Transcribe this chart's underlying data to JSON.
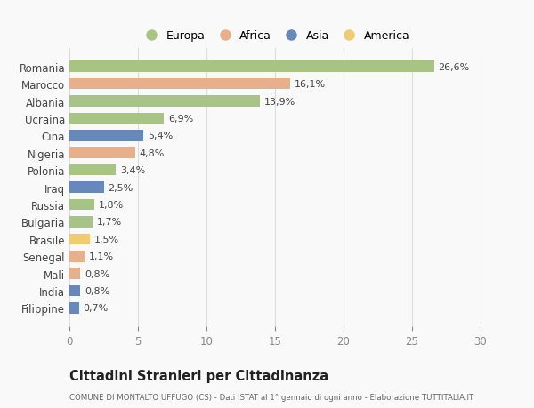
{
  "countries": [
    "Romania",
    "Marocco",
    "Albania",
    "Ucraina",
    "Cina",
    "Nigeria",
    "Polonia",
    "Iraq",
    "Russia",
    "Bulgaria",
    "Brasile",
    "Senegal",
    "Mali",
    "India",
    "Filippine"
  ],
  "values": [
    26.6,
    16.1,
    13.9,
    6.9,
    5.4,
    4.8,
    3.4,
    2.5,
    1.8,
    1.7,
    1.5,
    1.1,
    0.8,
    0.8,
    0.7
  ],
  "labels": [
    "26,6%",
    "16,1%",
    "13,9%",
    "6,9%",
    "5,4%",
    "4,8%",
    "3,4%",
    "2,5%",
    "1,8%",
    "1,7%",
    "1,5%",
    "1,1%",
    "0,8%",
    "0,8%",
    "0,7%"
  ],
  "colors": [
    "#a8c484",
    "#e8b08a",
    "#a8c484",
    "#a8c484",
    "#6688bb",
    "#e8b08a",
    "#a8c484",
    "#6688bb",
    "#a8c484",
    "#a8c484",
    "#f0cc70",
    "#e8b08a",
    "#e8b08a",
    "#6688bb",
    "#6688bb"
  ],
  "continent_colors": {
    "Europa": "#a8c484",
    "Africa": "#e8b08a",
    "Asia": "#6688bb",
    "America": "#f0cc70"
  },
  "title": "Cittadini Stranieri per Cittadinanza",
  "subtitle": "COMUNE DI MONTALTO UFFUGO (CS) - Dati ISTAT al 1° gennaio di ogni anno - Elaborazione TUTTITALIA.IT",
  "xlim": [
    0,
    30
  ],
  "xticks": [
    0,
    5,
    10,
    15,
    20,
    25,
    30
  ],
  "background_color": "#f9f9f9"
}
